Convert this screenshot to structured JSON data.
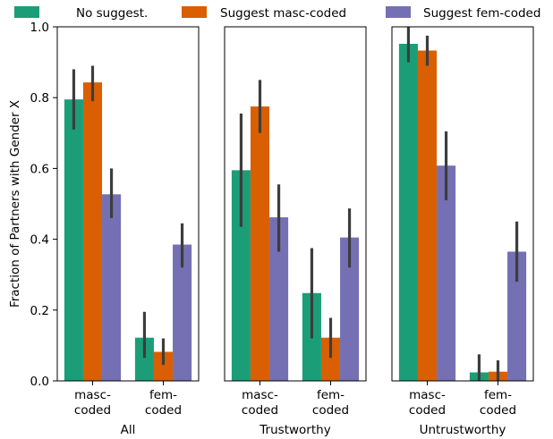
{
  "chart_data": {
    "type": "bar",
    "ylabel": "Fraction of Partners with Gender X",
    "ylim": [
      0,
      1.0
    ],
    "yticks": [
      "0.0",
      "0.2",
      "0.4",
      "0.6",
      "0.8",
      "1.0"
    ],
    "legend": {
      "placement": "top",
      "entries": [
        {
          "name": "No suggest.",
          "color": "#1b9e77"
        },
        {
          "name": "Suggest masc-coded",
          "color": "#d95f02"
        },
        {
          "name": "Suggest fem-coded",
          "color": "#7570b3"
        }
      ]
    },
    "categories": [
      [
        "masc-",
        "coded"
      ],
      [
        "fem-",
        "coded"
      ]
    ],
    "panels": [
      {
        "xlabel": "All",
        "series": [
          {
            "name": "No suggest.",
            "values": [
              0.795,
              0.122
            ],
            "ci": [
              [
                0.71,
                0.88
              ],
              [
                0.065,
                0.195
              ]
            ]
          },
          {
            "name": "Suggest masc-coded",
            "values": [
              0.843,
              0.082
            ],
            "ci": [
              [
                0.79,
                0.89
              ],
              [
                0.045,
                0.12
              ]
            ]
          },
          {
            "name": "Suggest fem-coded",
            "values": [
              0.527,
              0.385
            ],
            "ci": [
              [
                0.46,
                0.6
              ],
              [
                0.32,
                0.445
              ]
            ]
          }
        ]
      },
      {
        "xlabel": "Trustworthy",
        "series": [
          {
            "name": "No suggest.",
            "values": [
              0.595,
              0.248
            ],
            "ci": [
              [
                0.435,
                0.755
              ],
              [
                0.12,
                0.375
              ]
            ]
          },
          {
            "name": "Suggest masc-coded",
            "values": [
              0.775,
              0.122
            ],
            "ci": [
              [
                0.7,
                0.85
              ],
              [
                0.065,
                0.178
              ]
            ]
          },
          {
            "name": "Suggest fem-coded",
            "values": [
              0.462,
              0.405
            ],
            "ci": [
              [
                0.365,
                0.555
              ],
              [
                0.32,
                0.487
              ]
            ]
          }
        ]
      },
      {
        "xlabel": "Untrustworthy",
        "series": [
          {
            "name": "No suggest.",
            "values": [
              0.952,
              0.024
            ],
            "ci": [
              [
                0.9,
                1.0
              ],
              [
                0.0,
                0.075
              ]
            ]
          },
          {
            "name": "Suggest masc-coded",
            "values": [
              0.933,
              0.026
            ],
            "ci": [
              [
                0.89,
                0.975
              ],
              [
                0.0,
                0.058
              ]
            ]
          },
          {
            "name": "Suggest fem-coded",
            "values": [
              0.608,
              0.365
            ],
            "ci": [
              [
                0.51,
                0.705
              ],
              [
                0.28,
                0.45
              ]
            ]
          }
        ]
      }
    ]
  }
}
